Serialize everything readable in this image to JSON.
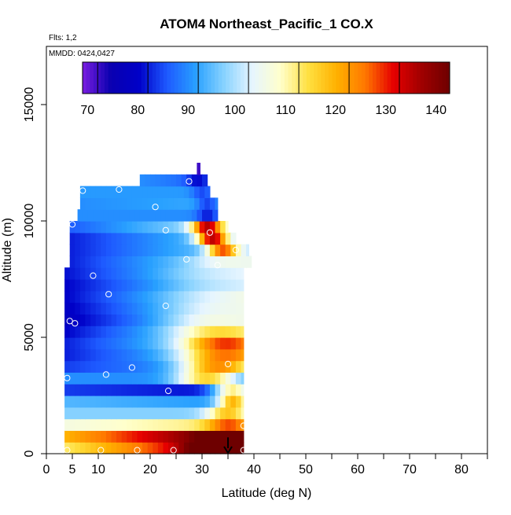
{
  "chart_data": {
    "type": "heatmap",
    "title": "ATOM4 Northeast_Pacific_1 CO.X",
    "subtitle_flights": "Flts: 1,2",
    "subtitle_dates": "MMDD: 0424,0427",
    "xlabel": "Latitude (deg N)",
    "ylabel": "Altitude (m)",
    "xlim": [
      0,
      85
    ],
    "ylim": [
      0,
      17500
    ],
    "x_ticks": [
      0,
      5,
      10,
      20,
      30,
      40,
      50,
      60,
      70,
      80
    ],
    "x_tick_labels": [
      "0",
      "5",
      "10",
      "20",
      "30",
      "40",
      "50",
      "60",
      "70",
      "80"
    ],
    "x_minor_ticks": [
      15,
      25,
      35,
      45,
      55,
      65,
      75,
      85
    ],
    "y_ticks": [
      0,
      5000,
      10000,
      15000
    ],
    "y_tick_labels": [
      "0",
      "5000",
      "10000",
      "15000"
    ],
    "colorbar": {
      "min": 67,
      "max": 140,
      "ticks": [
        70,
        80,
        90,
        100,
        110,
        120,
        130,
        140
      ],
      "tick_labels": [
        "70",
        "80",
        "90",
        "100",
        "110",
        "120",
        "130",
        "140"
      ],
      "colors": [
        "#7a1ee0",
        "#0a00b0",
        "#0000c8",
        "#1e5aff",
        "#28a0ff",
        "#87d2ff",
        "#e6f5ff",
        "#ffffcc",
        "#ffe040",
        "#ffb000",
        "#ff7800",
        "#e60000",
        "#a00000",
        "#6e0000"
      ]
    },
    "arrow": {
      "x": 35,
      "y_top": 700,
      "y_bottom": 0,
      "color": "#000000"
    },
    "layers": [
      {
        "y0": 0,
        "y1": 500,
        "lat0": 3.5,
        "lat1": 38,
        "base": 110,
        "trend": 0.9,
        "hot_lat": 33,
        "hot_amp": 20,
        "hot_w": 6
      },
      {
        "y0": 500,
        "y1": 1000,
        "lat0": 3.5,
        "lat1": 38,
        "base": 117,
        "trend": 0.8,
        "hot_lat": 35,
        "hot_amp": 15,
        "hot_w": 5
      },
      {
        "y0": 1000,
        "y1": 1500,
        "lat0": 3.5,
        "lat1": 38,
        "base": 104,
        "trend": 0.2,
        "hot_lat": 35,
        "hot_amp": 15,
        "hot_w": 4
      },
      {
        "y0": 1500,
        "y1": 2000,
        "lat0": 3.5,
        "lat1": 38,
        "base": 95,
        "trend": 0.0,
        "hot_lat": 35,
        "hot_amp": 20,
        "hot_w": 4
      },
      {
        "y0": 2000,
        "y1": 2500,
        "lat0": 3.5,
        "lat1": 38,
        "base": 92,
        "trend": -0.1,
        "hot_lat": 36,
        "hot_amp": 28,
        "hot_w": 3
      },
      {
        "y0": 2500,
        "y1": 3000,
        "lat0": 3.5,
        "lat1": 38,
        "base": 82,
        "trend": -0.1,
        "hot_lat": 36,
        "hot_amp": 30,
        "hot_w": 4
      },
      {
        "y0": 3000,
        "y1": 3500,
        "lat0": 3.5,
        "lat1": 38,
        "base": 88,
        "trend": 0.0,
        "hot_lat": 31,
        "hot_amp": 25,
        "hot_w": 6
      },
      {
        "y0": 3500,
        "y1": 4000,
        "lat0": 3.5,
        "lat1": 38,
        "base": 82,
        "trend": 0.3,
        "hot_lat": 33,
        "hot_amp": 30,
        "hot_w": 7
      },
      {
        "y0": 4000,
        "y1": 4500,
        "lat0": 3.5,
        "lat1": 38,
        "base": 80,
        "trend": 0.5,
        "hot_lat": 34,
        "hot_amp": 28,
        "hot_w": 8
      },
      {
        "y0": 4500,
        "y1": 5000,
        "lat0": 3.5,
        "lat1": 38,
        "base": 80,
        "trend": 0.6,
        "hot_lat": 34,
        "hot_amp": 28,
        "hot_w": 8
      },
      {
        "y0": 5000,
        "y1": 5500,
        "lat0": 3.5,
        "lat1": 38,
        "base": 78,
        "trend": 0.7,
        "hot_lat": 32,
        "hot_amp": 14,
        "hot_w": 8
      },
      {
        "y0": 5500,
        "y1": 6000,
        "lat0": 3.5,
        "lat1": 38,
        "base": 76,
        "trend": 0.7,
        "hot_lat": 30,
        "hot_amp": 8,
        "hot_w": 8
      },
      {
        "y0": 6000,
        "y1": 6500,
        "lat0": 3.5,
        "lat1": 38,
        "base": 77,
        "trend": 0.7,
        "hot_lat": 30,
        "hot_amp": 5,
        "hot_w": 8
      },
      {
        "y0": 6500,
        "y1": 7000,
        "lat0": 3.5,
        "lat1": 38,
        "base": 78,
        "trend": 0.7,
        "hot_lat": 30,
        "hot_amp": 3,
        "hot_w": 8
      },
      {
        "y0": 7000,
        "y1": 7500,
        "lat0": 3.5,
        "lat1": 38,
        "base": 78,
        "trend": 0.6,
        "hot_lat": 30,
        "hot_amp": 3,
        "hot_w": 8
      },
      {
        "y0": 7500,
        "y1": 8000,
        "lat0": 3.5,
        "lat1": 38,
        "base": 79,
        "trend": 0.6,
        "hot_lat": 30,
        "hot_amp": 3,
        "hot_w": 8
      },
      {
        "y0": 8000,
        "y1": 8500,
        "lat0": 4.5,
        "lat1": 39.5,
        "base": 80,
        "trend": 0.6,
        "hot_lat": 33,
        "hot_amp": 5,
        "hot_w": 6
      },
      {
        "y0": 8500,
        "y1": 9000,
        "lat0": 4.5,
        "lat1": 39,
        "base": 80,
        "trend": 0.5,
        "hot_lat": 34,
        "hot_amp": 30,
        "hot_w": 3
      },
      {
        "y0": 9000,
        "y1": 9500,
        "lat0": 4.5,
        "lat1": 36.5,
        "base": 80,
        "trend": 0.5,
        "hot_lat": 32,
        "hot_amp": 38,
        "hot_w": 3
      },
      {
        "y0": 9500,
        "y1": 10000,
        "lat0": 4.5,
        "lat1": 35,
        "base": 84,
        "trend": 0.5,
        "hot_lat": 31,
        "hot_amp": 35,
        "hot_w": 3
      },
      {
        "y0": 10000,
        "y1": 10500,
        "lat0": 6,
        "lat1": 33,
        "base": 88,
        "trend": 0.0,
        "hot_lat": 31,
        "hot_amp": -8,
        "hot_w": 2
      },
      {
        "y0": 10500,
        "y1": 11000,
        "lat0": 6.5,
        "lat1": 33,
        "base": 88,
        "trend": 0.1,
        "hot_lat": 31,
        "hot_amp": -8,
        "hot_w": 2
      },
      {
        "y0": 11000,
        "y1": 11500,
        "lat0": 6.5,
        "lat1": 31.5,
        "base": 89,
        "trend": 0.0,
        "hot_lat": 30,
        "hot_amp": -6,
        "hot_w": 2
      },
      {
        "y0": 11500,
        "y1": 12000,
        "lat0": 18,
        "lat1": 31,
        "base": 88,
        "trend": -0.3,
        "hot_lat": 29,
        "hot_amp": -6,
        "hot_w": 2
      },
      {
        "y0": 12000,
        "y1": 12500,
        "lat0": 29,
        "lat1": 29.6,
        "base": 70,
        "trend": 0.0,
        "hot_lat": 29,
        "hot_amp": 0,
        "hot_w": 1
      }
    ],
    "samples": [
      {
        "lat": 4,
        "alt": 150
      },
      {
        "lat": 10.5,
        "alt": 150
      },
      {
        "lat": 17.5,
        "alt": 150
      },
      {
        "lat": 24.5,
        "alt": 150
      },
      {
        "lat": 38,
        "alt": 150
      },
      {
        "lat": 38,
        "alt": 1200
      },
      {
        "lat": 23.5,
        "alt": 2700
      },
      {
        "lat": 4,
        "alt": 3250
      },
      {
        "lat": 11.5,
        "alt": 3400
      },
      {
        "lat": 16.5,
        "alt": 3700
      },
      {
        "lat": 35,
        "alt": 3850
      },
      {
        "lat": 4.5,
        "alt": 5700
      },
      {
        "lat": 5.5,
        "alt": 5600
      },
      {
        "lat": 23,
        "alt": 6350
      },
      {
        "lat": 12,
        "alt": 6850
      },
      {
        "lat": 9,
        "alt": 7650
      },
      {
        "lat": 27,
        "alt": 8350
      },
      {
        "lat": 33,
        "alt": 8100
      },
      {
        "lat": 36.5,
        "alt": 8750
      },
      {
        "lat": 23,
        "alt": 9600
      },
      {
        "lat": 31.5,
        "alt": 9500
      },
      {
        "lat": 5,
        "alt": 9850
      },
      {
        "lat": 21,
        "alt": 10600
      },
      {
        "lat": 7,
        "alt": 11300
      },
      {
        "lat": 14,
        "alt": 11350
      },
      {
        "lat": 27.5,
        "alt": 11700
      }
    ]
  }
}
